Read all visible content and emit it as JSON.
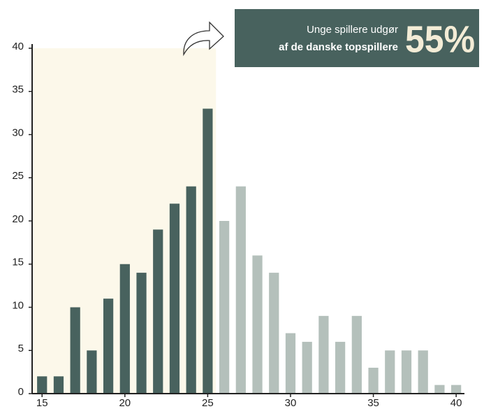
{
  "chart_data": {
    "type": "bar",
    "x": [
      15,
      16,
      17,
      18,
      19,
      20,
      21,
      22,
      23,
      24,
      25,
      26,
      27,
      28,
      29,
      30,
      31,
      32,
      33,
      34,
      35,
      36,
      37,
      38,
      39,
      40
    ],
    "values": [
      2,
      2,
      10,
      5,
      11,
      15,
      14,
      19,
      22,
      24,
      33,
      20,
      24,
      16,
      14,
      7,
      6,
      9,
      6,
      9,
      3,
      5,
      5,
      5,
      1,
      1
    ],
    "color": "#b4c0bb",
    "highlight_color": "#48625e",
    "highlight_fill": "#fcf8ea",
    "highlight_until": 25.5,
    "xlim": [
      14.4,
      40.5
    ],
    "xticks": [
      15,
      20,
      25,
      30,
      35,
      40
    ],
    "ylim": [
      0,
      40
    ],
    "yticks": [
      0,
      5,
      10,
      15,
      20,
      25,
      30,
      35,
      40
    ],
    "annotation": {
      "line1": "Unge spillere udgør",
      "line2": "af de danske topspillere",
      "value": "55%"
    }
  }
}
